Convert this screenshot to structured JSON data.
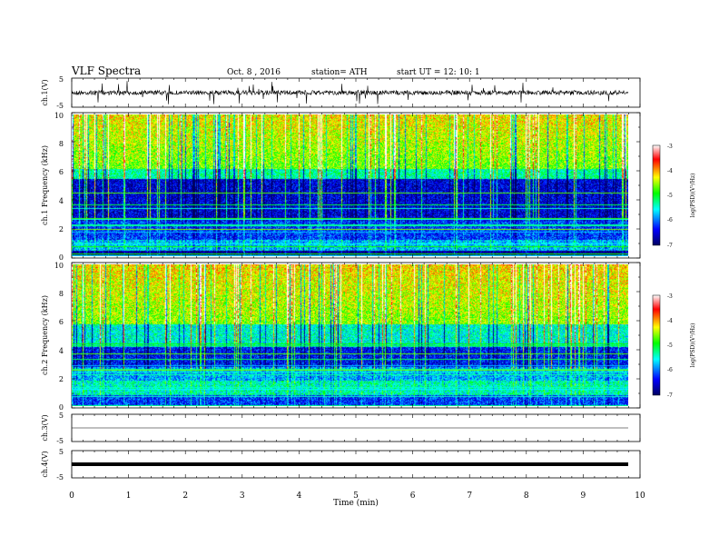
{
  "header": {
    "title": "VLF  Spectra",
    "date": "Oct. 8 , 2016",
    "station": "station= ATH",
    "start": "start  UT  =     12: 10: 1"
  },
  "chart_data": [
    {
      "type": "line",
      "panel": "ch1-waveform",
      "ylabel": "ch.1(V)",
      "ylim": [
        -5,
        5
      ],
      "yticks": [
        "5",
        "-5"
      ],
      "grid": false
    },
    {
      "type": "heatmap",
      "panel": "ch1-spectrogram",
      "ylabel": "ch.1 Frequency (kHz)",
      "ylim": [
        0,
        10
      ],
      "yticks": [
        "0",
        "2",
        "4",
        "6",
        "8",
        "10"
      ],
      "colorbar": {
        "label": "log(PSD)(V²/Hz)",
        "range": [
          -7,
          -3
        ],
        "ticks": [
          "-3",
          "-4",
          "-5",
          "-6",
          "-7"
        ],
        "colors": [
          "#000060",
          "#0000ff",
          "#00ffff",
          "#00ff00",
          "#ffff00",
          "#ff0000",
          "#ffffff"
        ]
      }
    },
    {
      "type": "heatmap",
      "panel": "ch2-spectrogram",
      "ylabel": "ch.2 Frequency (kHz)",
      "ylim": [
        0,
        10
      ],
      "yticks": [
        "0",
        "2",
        "4",
        "6",
        "8",
        "10"
      ],
      "colorbar": {
        "label": "log(PSD)(V²/Hz)",
        "range": [
          -7,
          -3
        ],
        "ticks": [
          "-3",
          "-4",
          "-5",
          "-6",
          "-7"
        ],
        "colors": [
          "#000060",
          "#0000ff",
          "#00ffff",
          "#00ff00",
          "#ffff00",
          "#ff0000",
          "#ffffff"
        ]
      }
    },
    {
      "type": "line",
      "panel": "ch3-waveform",
      "ylabel": "ch.3(V)",
      "ylim": [
        -5,
        5
      ],
      "yticks": [
        "5",
        "-5"
      ]
    },
    {
      "type": "line",
      "panel": "ch4-waveform",
      "ylabel": "ch.4(V)",
      "ylim": [
        -5,
        5
      ],
      "yticks": [
        "5",
        "-5"
      ]
    },
    {
      "type": "axis",
      "xlabel": "Time  (min)",
      "xlim": [
        0,
        10
      ],
      "xticks": [
        "0",
        "1",
        "2",
        "3",
        "4",
        "5",
        "6",
        "7",
        "8",
        "9",
        "10"
      ],
      "data_end": 9.8
    }
  ]
}
